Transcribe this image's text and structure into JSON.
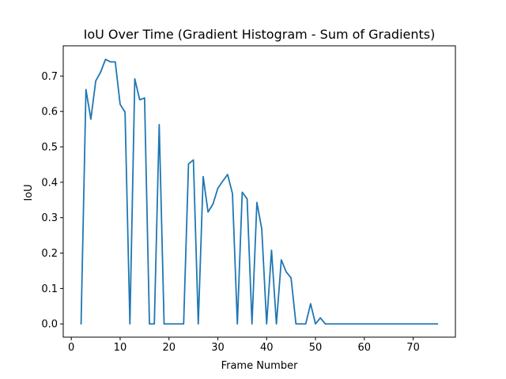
{
  "chart_data": {
    "type": "line",
    "title": "IoU Over Time (Gradient Histogram - Sum of Gradients)",
    "xlabel": "Frame Number",
    "ylabel": "IoU",
    "xlim": [
      -1.65,
      78.65
    ],
    "ylim": [
      -0.0374,
      0.7854
    ],
    "xticks": [
      0,
      10,
      20,
      30,
      40,
      50,
      60,
      70
    ],
    "yticks": [
      0.0,
      0.1,
      0.2,
      0.3,
      0.4,
      0.5,
      0.6,
      0.7
    ],
    "ytick_labels": [
      "0.0",
      "0.1",
      "0.2",
      "0.3",
      "0.4",
      "0.5",
      "0.6",
      "0.7"
    ],
    "grid": false,
    "series": [
      {
        "color": "#1f77b4",
        "x": [
          2,
          3,
          4,
          5,
          6,
          7,
          8,
          9,
          10,
          11,
          12,
          13,
          14,
          15,
          16,
          17,
          18,
          19,
          20,
          21,
          22,
          23,
          24,
          25,
          26,
          27,
          28,
          29,
          30,
          31,
          32,
          33,
          34,
          35,
          36,
          37,
          38,
          39,
          40,
          41,
          42,
          43,
          44,
          45,
          46,
          47,
          48,
          49,
          50,
          51,
          52,
          53,
          54,
          55,
          56,
          57,
          58,
          59,
          60,
          61,
          62,
          63,
          64,
          65,
          66,
          67,
          68,
          69,
          70,
          71,
          72,
          73,
          74,
          75
        ],
        "y": [
          0.0,
          0.662,
          0.578,
          0.686,
          0.711,
          0.747,
          0.74,
          0.74,
          0.62,
          0.598,
          0.0,
          0.692,
          0.633,
          0.638,
          0.0,
          0.0,
          0.563,
          0.0,
          0.0,
          0.0,
          0.0,
          0.0,
          0.452,
          0.463,
          0.0,
          0.416,
          0.316,
          0.338,
          0.383,
          0.403,
          0.422,
          0.368,
          0.0,
          0.372,
          0.353,
          0.0,
          0.343,
          0.268,
          0.0,
          0.208,
          0.0,
          0.181,
          0.147,
          0.13,
          0.0,
          0.0,
          0.0,
          0.057,
          0.0,
          0.017,
          0.0,
          0.0,
          0.0,
          0.0,
          0.0,
          0.0,
          0.0,
          0.0,
          0.0,
          0.0,
          0.0,
          0.0,
          0.0,
          0.0,
          0.0,
          0.0,
          0.0,
          0.0,
          0.0,
          0.0,
          0.0,
          0.0,
          0.0,
          0.0
        ]
      }
    ]
  }
}
